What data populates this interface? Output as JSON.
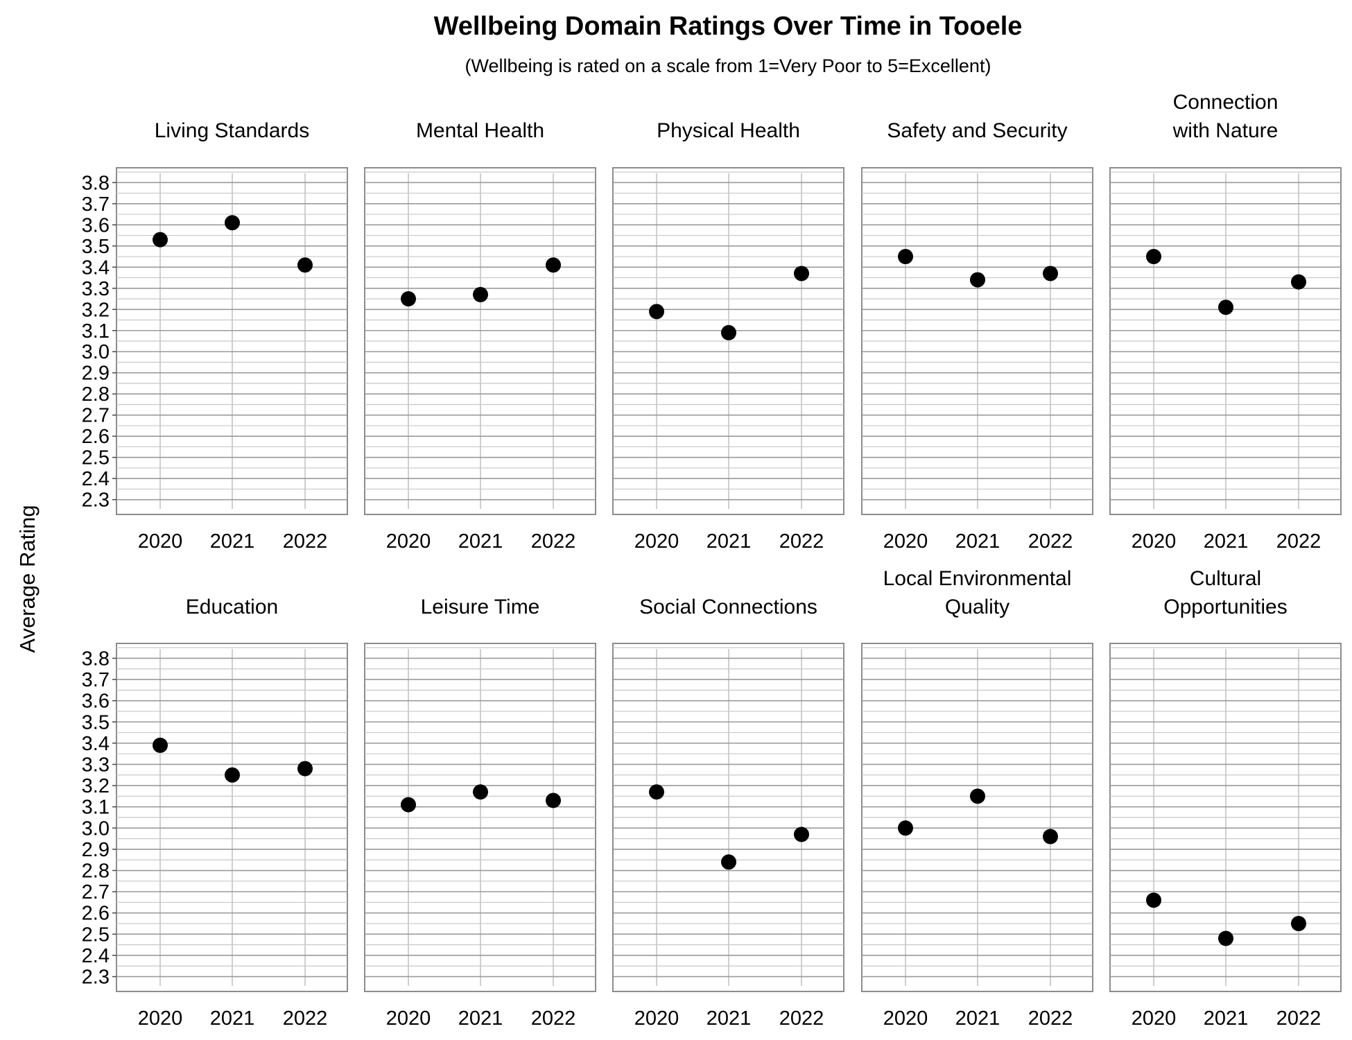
{
  "chart_data": {
    "type": "scatter",
    "title": "Wellbeing Domain Ratings Over Time in Tooele",
    "subtitle": "(Wellbeing is rated on a scale from 1=Very Poor to 5=Excellent)",
    "ylabel": "Average Rating",
    "xlabel": "",
    "ylim": [
      2.23,
      3.87
    ],
    "y_ticks": [
      "3.8",
      "3.7",
      "3.6",
      "3.5",
      "3.4",
      "3.3",
      "3.2",
      "3.1",
      "3.0",
      "2.9",
      "2.8",
      "2.7",
      "2.6",
      "2.5",
      "2.4",
      "2.3"
    ],
    "x": [
      "2020",
      "2021",
      "2022"
    ],
    "grid": true,
    "facets": [
      {
        "title": [
          "Living Standards"
        ],
        "values": [
          3.53,
          3.61,
          3.41
        ]
      },
      {
        "title": [
          "Mental Health"
        ],
        "values": [
          3.25,
          3.27,
          3.41
        ]
      },
      {
        "title": [
          "Physical Health"
        ],
        "values": [
          3.19,
          3.09,
          3.37
        ]
      },
      {
        "title": [
          "Safety and Security"
        ],
        "values": [
          3.45,
          3.34,
          3.37
        ]
      },
      {
        "title": [
          "Connection",
          "with Nature"
        ],
        "values": [
          3.45,
          3.21,
          3.33
        ]
      },
      {
        "title": [
          "Education"
        ],
        "values": [
          3.39,
          3.25,
          3.28
        ]
      },
      {
        "title": [
          "Leisure Time"
        ],
        "values": [
          3.11,
          3.17,
          3.13
        ]
      },
      {
        "title": [
          "Social Connections"
        ],
        "values": [
          3.17,
          2.84,
          2.97
        ]
      },
      {
        "title": [
          "Local Environmental",
          "Quality"
        ],
        "values": [
          3.0,
          3.15,
          2.96
        ]
      },
      {
        "title": [
          "Cultural",
          "Opportunities"
        ],
        "values": [
          2.66,
          2.48,
          2.55
        ]
      }
    ]
  }
}
